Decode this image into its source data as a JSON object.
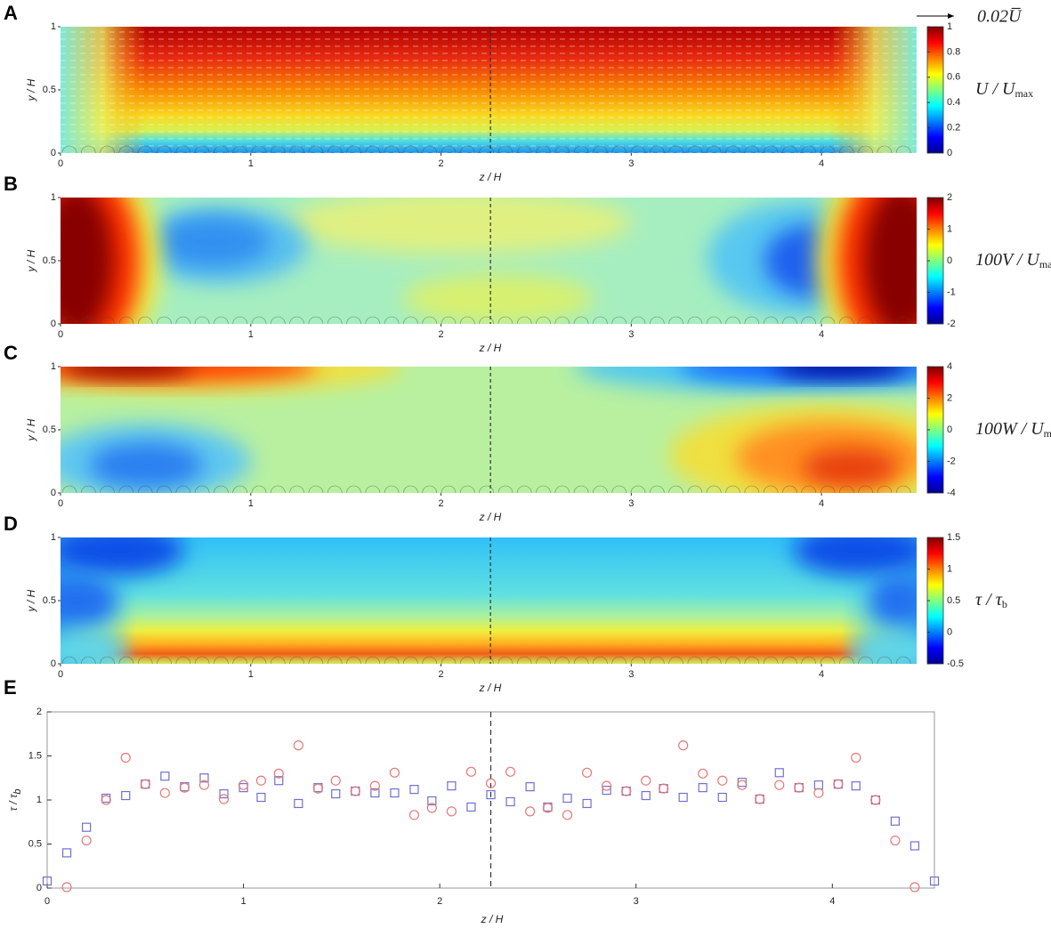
{
  "chart_data": [
    {
      "type": "heatmap",
      "panel": "A",
      "xlabel": "z / H",
      "ylabel": "y / H",
      "xlim": [
        0,
        4.5
      ],
      "ylim": [
        0,
        1
      ],
      "xticks": [
        0,
        1,
        2,
        3,
        4
      ],
      "yticks": [
        0,
        {
          "value": 0.5,
          "label": "0.5"
        },
        1
      ],
      "vline": 2.26,
      "colorbar": {
        "lim": [
          0,
          1
        ],
        "ticks": [
          0,
          0.2,
          0.4,
          0.6,
          0.8,
          1
        ],
        "label": "U / U",
        "label_sub": "max"
      },
      "quiver_key": "0.02U̅"
    },
    {
      "type": "heatmap",
      "panel": "B",
      "xlabel": "z / H",
      "ylabel": "y / H",
      "xlim": [
        0,
        4.5
      ],
      "ylim": [
        0,
        1
      ],
      "xticks": [
        0,
        1,
        2,
        3,
        4
      ],
      "yticks": [
        0,
        0.5,
        1
      ],
      "vline": 2.26,
      "colorbar": {
        "lim": [
          -2,
          2
        ],
        "ticks": [
          -2,
          -1,
          0,
          1,
          2
        ],
        "label": "100V / U",
        "label_sub": "max"
      }
    },
    {
      "type": "heatmap",
      "panel": "C",
      "xlabel": "z / H",
      "ylabel": "y / H",
      "xlim": [
        0,
        4.5
      ],
      "ylim": [
        0,
        1
      ],
      "xticks": [
        0,
        1,
        2,
        3,
        4
      ],
      "yticks": [
        0,
        0.5,
        1
      ],
      "vline": 2.26,
      "colorbar": {
        "lim": [
          -4,
          4
        ],
        "ticks": [
          -4,
          -2,
          0,
          2,
          4
        ],
        "label": "100W / U",
        "label_sub": "max"
      }
    },
    {
      "type": "heatmap",
      "panel": "D",
      "xlabel": "z / H",
      "ylabel": "y / H",
      "xlim": [
        0,
        4.5
      ],
      "ylim": [
        0,
        1
      ],
      "xticks": [
        0,
        1,
        2,
        3,
        4
      ],
      "yticks": [
        0,
        0.5,
        1
      ],
      "vline": 2.26,
      "colorbar": {
        "lim": [
          -0.5,
          1.5
        ],
        "ticks": [
          -0.5,
          0,
          0.5,
          1,
          1.5
        ],
        "label": "τ / τ",
        "label_sub": "b"
      }
    },
    {
      "type": "scatter",
      "panel": "E",
      "xlabel": "z / H",
      "ylabel": "τ / τ",
      "ylabel_sub": "b",
      "xlim": [
        0,
        4.52
      ],
      "ylim": [
        0,
        2
      ],
      "xticks": [
        0,
        1,
        2,
        3,
        4
      ],
      "yticks": [
        0,
        0.5,
        1,
        1.5,
        2
      ],
      "vline": 2.26,
      "series": [
        {
          "marker": "square",
          "color": "#7070d0",
          "x": [
            0,
            0.1,
            0.2,
            0.3,
            0.4,
            0.5,
            0.6,
            0.7,
            0.8,
            0.9,
            1.0,
            1.09,
            1.18,
            1.28,
            1.38,
            1.47,
            1.57,
            1.67,
            1.77,
            1.87,
            1.96,
            2.06,
            2.16,
            2.26,
            2.36,
            2.46,
            2.55,
            2.65,
            2.75,
            2.85,
            2.95,
            3.05,
            3.14,
            3.24,
            3.34,
            3.44,
            3.54,
            3.63,
            3.73,
            3.83,
            3.93,
            4.03,
            4.12,
            4.22,
            4.32,
            4.42,
            4.52
          ],
          "values": [
            0.08,
            0.4,
            0.69,
            1.02,
            1.05,
            1.18,
            1.27,
            1.15,
            1.25,
            1.07,
            1.14,
            1.03,
            1.22,
            0.96,
            1.14,
            1.07,
            1.1,
            1.08,
            1.08,
            1.12,
            0.99,
            1.16,
            0.92,
            1.06,
            0.98,
            1.15,
            0.92,
            1.02,
            0.96,
            1.11,
            1.1,
            1.05,
            1.13,
            1.03,
            1.14,
            1.03,
            1.2,
            1.01,
            1.31,
            1.14,
            1.17,
            1.18,
            1.16,
            1.0,
            0.76,
            0.48,
            0.08
          ]
        },
        {
          "marker": "circle",
          "color": "#e87878",
          "x": [
            0.1,
            0.2,
            0.3,
            0.4,
            0.5,
            0.6,
            0.7,
            0.8,
            0.9,
            1.0,
            1.09,
            1.18,
            1.28,
            1.38,
            1.47,
            1.57,
            1.67,
            1.77,
            1.87,
            1.96,
            2.06,
            2.16,
            2.26,
            2.36,
            2.46,
            2.55,
            2.65,
            2.75,
            2.85,
            2.95,
            3.05,
            3.14,
            3.24,
            3.34,
            3.44,
            3.54,
            3.63,
            3.73,
            3.83,
            3.93,
            4.03,
            4.12,
            4.22,
            4.32,
            4.42
          ],
          "values": [
            0.01,
            0.54,
            1.0,
            1.48,
            1.18,
            1.08,
            1.14,
            1.17,
            1.01,
            1.17,
            1.22,
            1.3,
            1.62,
            1.13,
            1.22,
            1.1,
            1.16,
            1.31,
            0.83,
            0.91,
            0.87,
            1.32,
            1.19,
            1.32,
            0.87,
            0.91,
            0.83,
            1.31,
            1.16,
            1.1,
            1.22,
            1.13,
            1.62,
            1.3,
            1.22,
            1.17,
            1.01,
            1.17,
            1.14,
            1.08,
            1.18,
            1.48,
            1.0,
            0.54,
            0.01
          ]
        }
      ]
    }
  ]
}
